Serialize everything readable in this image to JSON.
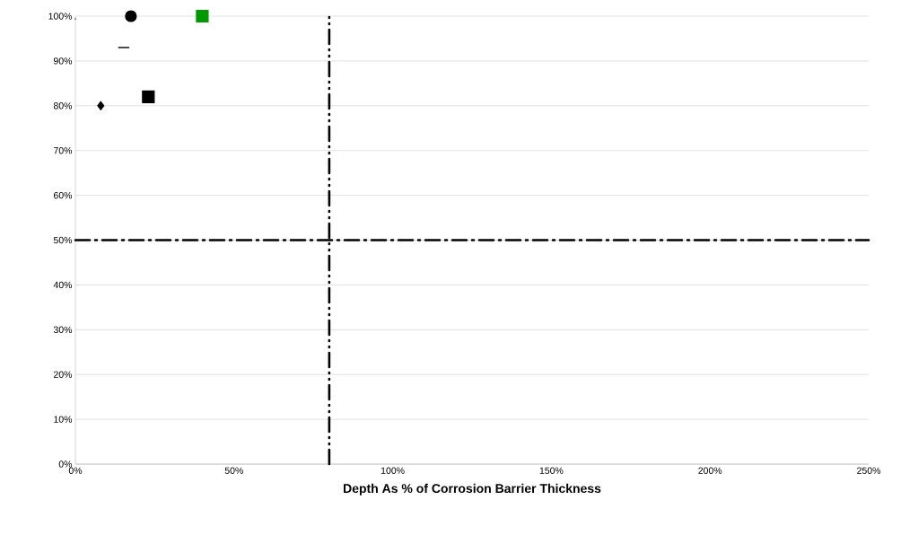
{
  "chart_data": {
    "type": "scatter",
    "xlabel": "Depth As % of Corrosion Barrier Thickness",
    "series": [
      {
        "x": [
          8
        ],
        "values": [
          80
        ],
        "color": "#000000",
        "marker": "diamond"
      },
      {
        "type": "line",
        "x": [
          13.5,
          17
        ],
        "values": [
          93,
          93
        ],
        "color": "#000000",
        "marker": "none"
      },
      {
        "x": [
          17.5
        ],
        "values": [
          100
        ],
        "color": "#000000",
        "marker": "circle"
      },
      {
        "x": [
          23
        ],
        "values": [
          82
        ],
        "color": "#000000",
        "marker": "square"
      },
      {
        "x": [
          40
        ],
        "values": [
          100
        ],
        "color": "#009900",
        "marker": "square"
      }
    ],
    "xlim": [
      0,
      250
    ],
    "ylim": [
      0,
      100
    ],
    "xticks": [
      {
        "value": 0,
        "label": "0%"
      },
      {
        "value": 50,
        "label": "50%"
      },
      {
        "value": 100,
        "label": "100%"
      },
      {
        "value": 150,
        "label": "150%"
      },
      {
        "value": 200,
        "label": "200%"
      },
      {
        "value": 250,
        "label": "250%"
      }
    ],
    "yticks": [
      {
        "value": 0,
        "label": "0%"
      },
      {
        "value": 10,
        "label": "10%"
      },
      {
        "value": 20,
        "label": "20%"
      },
      {
        "value": 30,
        "label": "30%"
      },
      {
        "value": 40,
        "label": "40%"
      },
      {
        "value": 50,
        "label": "50%"
      },
      {
        "value": 60,
        "label": "60%"
      },
      {
        "value": 70,
        "label": "70%"
      },
      {
        "value": 80,
        "label": "80%"
      },
      {
        "value": 90,
        "label": "90%"
      },
      {
        "value": 100,
        "label": "100%"
      }
    ],
    "ref_lines": [
      {
        "axis": "x",
        "value": 80,
        "color": "#000000",
        "line_style": "dashdotdotted"
      },
      {
        "axis": "y",
        "value": 50,
        "color": "#000000",
        "line_style": "dashdotted"
      }
    ],
    "grid": "y"
  }
}
